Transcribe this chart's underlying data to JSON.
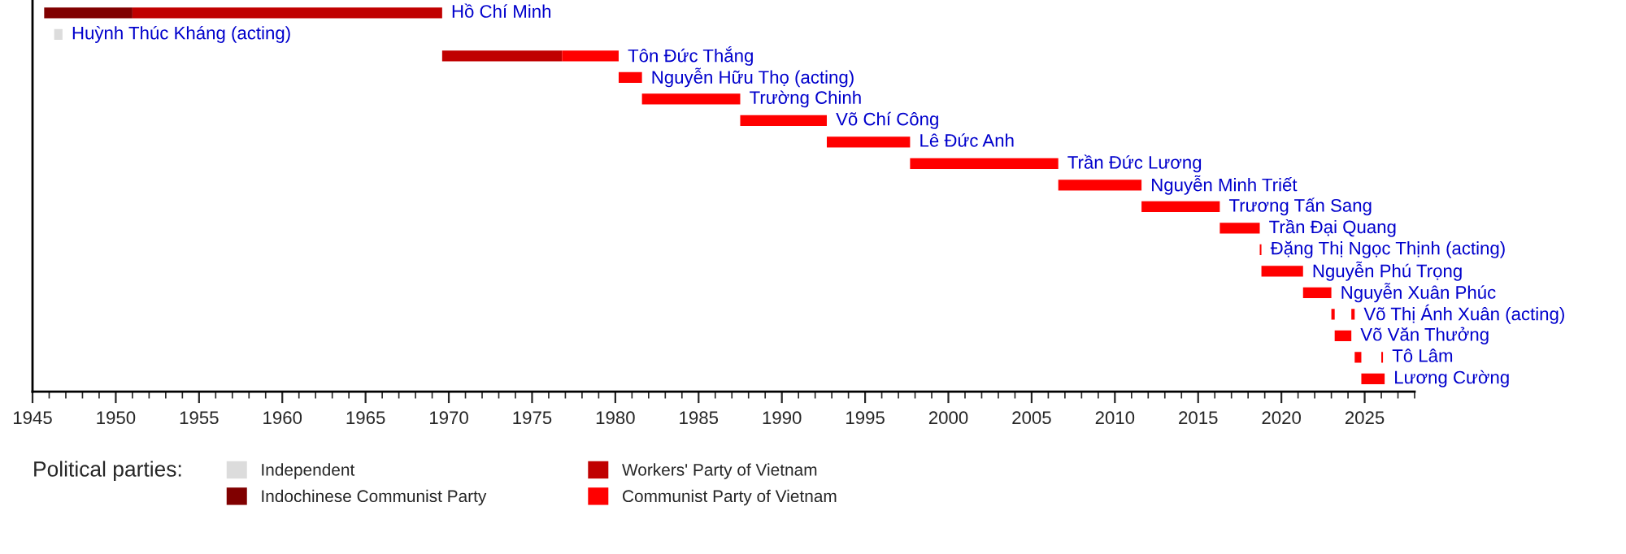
{
  "chart_data": {
    "type": "bar",
    "orientation": "horizontal",
    "categories": [
      "Hồ Chí Minh",
      "Huỳnh Thúc Kháng (acting)",
      "Tôn Đức Thắng",
      "Nguyễn Hữu Thọ (acting)",
      "Trường Chinh",
      "Võ Chí Công",
      "Lê Đức Anh",
      "Trần Đức Lương",
      "Nguyễn Minh Triết",
      "Trương Tấn Sang",
      "Trần Đại Quang",
      "Đặng Thị Ngọc Thịnh (acting)",
      "Nguyễn Phú Trọng",
      "Nguyễn Xuân Phúc",
      "Võ Thị Ánh Xuân (acting)",
      "Võ Văn Thưởng",
      "Tô Lâm",
      "Lương Cường"
    ],
    "series": [
      {
        "name": "Independent",
        "color": "#dcdcdc",
        "base": [
          null,
          1946.3,
          null,
          null,
          null,
          null,
          null,
          null,
          null,
          null,
          null,
          null,
          null,
          null,
          null,
          null,
          null,
          null
        ],
        "values": [
          null,
          0.5,
          null,
          null,
          null,
          null,
          null,
          null,
          null,
          null,
          null,
          null,
          null,
          null,
          null,
          null,
          null,
          null
        ]
      },
      {
        "name": "Indochinese Communist Party",
        "color": "#800000",
        "base": [
          1945.7,
          null,
          null,
          null,
          null,
          null,
          null,
          null,
          null,
          null,
          null,
          null,
          null,
          null,
          null,
          null,
          null,
          null
        ],
        "values": [
          5.3,
          null,
          null,
          null,
          null,
          null,
          null,
          null,
          null,
          null,
          null,
          null,
          null,
          null,
          null,
          null,
          null,
          null
        ]
      },
      {
        "name": "Workers' Party of Vietnam",
        "color": "#c00000",
        "base": [
          1951.0,
          null,
          1969.6,
          null,
          null,
          null,
          null,
          null,
          null,
          null,
          null,
          null,
          null,
          null,
          null,
          null,
          null,
          null
        ],
        "values": [
          18.6,
          null,
          7.2,
          null,
          null,
          null,
          null,
          null,
          null,
          null,
          null,
          null,
          null,
          null,
          null,
          null,
          null,
          null
        ]
      },
      {
        "name": "Communist Party of Vietnam",
        "color": "#ff0000",
        "base": [
          null,
          null,
          1976.8,
          1980.2,
          1981.6,
          1987.5,
          1992.7,
          1997.7,
          2006.6,
          2011.6,
          2016.3,
          2018.7,
          2018.8,
          2021.3,
          2023.0,
          2023.2,
          2024.4,
          2024.8
        ],
        "values": [
          null,
          null,
          3.4,
          1.4,
          5.9,
          5.2,
          5.0,
          8.9,
          5.0,
          4.7,
          2.4,
          0.1,
          2.5,
          1.7,
          0.2,
          1.0,
          0.4,
          1.4
        ]
      },
      {
        "color": "#ff0000",
        "base": [
          null,
          null,
          null,
          null,
          null,
          null,
          null,
          null,
          null,
          null,
          null,
          null,
          null,
          null,
          2024.2,
          null,
          2026.0,
          null
        ],
        "values": [
          null,
          null,
          null,
          null,
          null,
          null,
          null,
          null,
          null,
          null,
          null,
          null,
          null,
          null,
          0.2,
          null,
          0.1,
          null
        ]
      }
    ],
    "legend_title": "Political parties:",
    "legend": "bottom",
    "xlim": [
      1945,
      2028
    ],
    "xticks": [
      1945,
      1950,
      1955,
      1960,
      1965,
      1970,
      1975,
      1980,
      1985,
      1990,
      1995,
      2000,
      2005,
      2010,
      2015,
      2020,
      2025
    ],
    "grid": false
  }
}
